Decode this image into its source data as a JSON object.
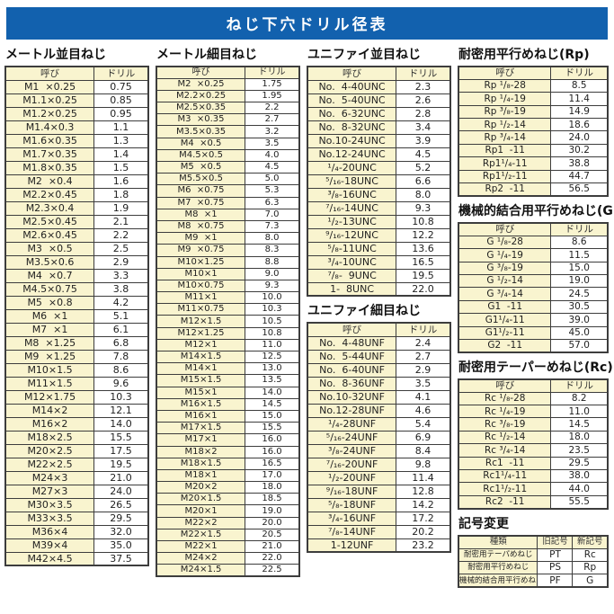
{
  "page_title": "ねじ下穴ドリル径表",
  "table_headers": {
    "name": "呼び",
    "drill": "ドリル"
  },
  "colors": {
    "title_bar_blue": "#1261ae",
    "cell_yellow": "#f9f4cf",
    "cell_white": "#ffffff",
    "border_dark": "#3d3d3d",
    "text": "#1f1f1f"
  },
  "sections": {
    "metric_coarse": {
      "title": "メートル並目ねじ",
      "rows": [
        [
          "M1  ×0.25",
          "0.75"
        ],
        [
          "M1.1×0.25",
          "0.85"
        ],
        [
          "M1.2×0.25",
          "0.95"
        ],
        [
          "M1.4×0.3",
          "1.1"
        ],
        [
          "M1.6×0.35",
          "1.3"
        ],
        [
          "M1.7×0.35",
          "1.4"
        ],
        [
          "M1.8×0.35",
          "1.5"
        ],
        [
          "M2  ×0.4",
          "1.6"
        ],
        [
          "M2.2×0.45",
          "1.8"
        ],
        [
          "M2.3×0.4",
          "1.9"
        ],
        [
          "M2.5×0.45",
          "2.1"
        ],
        [
          "M2.6×0.45",
          "2.2"
        ],
        [
          "M3  ×0.5",
          "2.5"
        ],
        [
          "M3.5×0.6",
          "2.9"
        ],
        [
          "M4  ×0.7",
          "3.3"
        ],
        [
          "M4.5×0.75",
          "3.8"
        ],
        [
          "M5  ×0.8",
          "4.2"
        ],
        [
          "M6  ×1",
          "5.1"
        ],
        [
          "M7  ×1",
          "6.1"
        ],
        [
          "M8  ×1.25",
          "6.8"
        ],
        [
          "M9  ×1.25",
          "7.8"
        ],
        [
          "M10×1.5",
          "8.6"
        ],
        [
          "M11×1.5",
          "9.6"
        ],
        [
          "M12×1.75",
          "10.3"
        ],
        [
          "M14×2",
          "12.1"
        ],
        [
          "M16×2",
          "14.0"
        ],
        [
          "M18×2.5",
          "15.5"
        ],
        [
          "M20×2.5",
          "17.5"
        ],
        [
          "M22×2.5",
          "19.5"
        ],
        [
          "M24×3",
          "21.0"
        ],
        [
          "M27×3",
          "24.0"
        ],
        [
          "M30×3.5",
          "26.5"
        ],
        [
          "M33×3.5",
          "29.5"
        ],
        [
          "M36×4",
          "32.0"
        ],
        [
          "M39×4",
          "35.0"
        ],
        [
          "M42×4.5",
          "37.5"
        ]
      ]
    },
    "metric_fine": {
      "title": "メートル細目ねじ",
      "rows": [
        [
          "M2  ×0.25",
          "1.75"
        ],
        [
          "M2.2×0.25",
          "1.95"
        ],
        [
          "M2.5×0.35",
          "2.2"
        ],
        [
          "M3  ×0.35",
          "2.7"
        ],
        [
          "M3.5×0.35",
          "3.2"
        ],
        [
          "M4  ×0.5",
          "3.5"
        ],
        [
          "M4.5×0.5",
          "4.0"
        ],
        [
          "M5  ×0.5",
          "4.5"
        ],
        [
          "M5.5×0.5",
          "5.0"
        ],
        [
          "M6  ×0.75",
          "5.3"
        ],
        [
          "M7  ×0.75",
          "6.3"
        ],
        [
          "M8  ×1",
          "7.0"
        ],
        [
          "M8  ×0.75",
          "7.3"
        ],
        [
          "M9  ×1",
          "8.0"
        ],
        [
          "M9  ×0.75",
          "8.3"
        ],
        [
          "M10×1.25",
          "8.8"
        ],
        [
          "M10×1",
          "9.0"
        ],
        [
          "M10×0.75",
          "9.3"
        ],
        [
          "M11×1",
          "10.0"
        ],
        [
          "M11×0.75",
          "10.3"
        ],
        [
          "M12×1.5",
          "10.5"
        ],
        [
          "M12×1.25",
          "10.8"
        ],
        [
          "M12×1",
          "11.0"
        ],
        [
          "M14×1.5",
          "12.5"
        ],
        [
          "M14×1",
          "13.0"
        ],
        [
          "M15×1.5",
          "13.5"
        ],
        [
          "M15×1",
          "14.0"
        ],
        [
          "M16×1.5",
          "14.5"
        ],
        [
          "M16×1",
          "15.0"
        ],
        [
          "M17×1.5",
          "15.5"
        ],
        [
          "M17×1",
          "16.0"
        ],
        [
          "M18×2",
          "16.0"
        ],
        [
          "M18×1.5",
          "16.5"
        ],
        [
          "M18×1",
          "17.0"
        ],
        [
          "M20×2",
          "18.0"
        ],
        [
          "M20×1.5",
          "18.5"
        ],
        [
          "M20×1",
          "19.0"
        ],
        [
          "M22×2",
          "20.0"
        ],
        [
          "M22×1.5",
          "20.5"
        ],
        [
          "M22×1",
          "21.0"
        ],
        [
          "M24×2",
          "22.0"
        ],
        [
          "M24×1.5",
          "22.5"
        ]
      ]
    },
    "unified_coarse": {
      "title": "ユニファイ並目ねじ",
      "rows": [
        [
          "No.  4-40UNC",
          "2.3"
        ],
        [
          "No.  5-40UNC",
          "2.6"
        ],
        [
          "No.  6-32UNC",
          "2.8"
        ],
        [
          "No.  8-32UNC",
          "3.4"
        ],
        [
          "No.10-24UNC",
          "3.9"
        ],
        [
          "No.12-24UNC",
          "4.5"
        ],
        [
          "¹/₄-20UNC",
          "5.2"
        ],
        [
          "⁵/₁₆-18UNC",
          "6.6"
        ],
        [
          "³/₈-16UNC",
          "8.0"
        ],
        [
          "⁷/₁₆-14UNC",
          "9.3"
        ],
        [
          "¹/₂-13UNC",
          "10.8"
        ],
        [
          "⁹/₁₆-12UNC",
          "12.2"
        ],
        [
          "⁵/₈-11UNC",
          "13.6"
        ],
        [
          "³/₄-10UNC",
          "16.5"
        ],
        [
          "⁷/₈-  9UNC",
          "19.5"
        ],
        [
          "1-  8UNC",
          "22.0"
        ]
      ]
    },
    "unified_fine": {
      "title": "ユニファイ細目ねじ",
      "rows": [
        [
          "No.  4-48UNF",
          "2.4"
        ],
        [
          "No.  5-44UNF",
          "2.7"
        ],
        [
          "No.  6-40UNF",
          "2.9"
        ],
        [
          "No.  8-36UNF",
          "3.5"
        ],
        [
          "No.10-32UNF",
          "4.1"
        ],
        [
          "No.12-28UNF",
          "4.6"
        ],
        [
          "¹/₄-28UNF",
          "5.4"
        ],
        [
          "⁵/₁₆-24UNF",
          "6.9"
        ],
        [
          "³/₈-24UNF",
          "8.4"
        ],
        [
          "⁷/₁₆-20UNF",
          "9.8"
        ],
        [
          "¹/₂-20UNF",
          "11.4"
        ],
        [
          "⁹/₁₆-18UNF",
          "12.8"
        ],
        [
          "⁵/₈-18UNF",
          "14.2"
        ],
        [
          "³/₄-16UNF",
          "17.2"
        ],
        [
          "⁷/₈-14UNF",
          "20.2"
        ],
        [
          "1-12UNF",
          "23.2"
        ]
      ]
    },
    "rp": {
      "title": "耐密用平行めねじ(Rp)",
      "rows": [
        [
          "Rp ¹/₈-28",
          "8.5"
        ],
        [
          "Rp ¹/₄-19",
          "11.4"
        ],
        [
          "Rp ³/₈-19",
          "14.9"
        ],
        [
          "Rp ¹/₂-14",
          "18.6"
        ],
        [
          "Rp ³/₄-14",
          "24.0"
        ],
        [
          "Rp1  -11",
          "30.2"
        ],
        [
          "Rp1¹/₄-11",
          "38.8"
        ],
        [
          "Rp1¹/₂-11",
          "44.7"
        ],
        [
          "Rp2  -11",
          "56.5"
        ]
      ]
    },
    "g": {
      "title": "機械的結合用平行めねじ(G)",
      "rows": [
        [
          "G ¹/₈-28",
          "8.6"
        ],
        [
          "G ¹/₄-19",
          "11.5"
        ],
        [
          "G ³/₈-19",
          "15.0"
        ],
        [
          "G ¹/₂-14",
          "19.0"
        ],
        [
          "G ³/₄-14",
          "24.5"
        ],
        [
          "G1  -11",
          "30.5"
        ],
        [
          "G1¹/₄-11",
          "39.0"
        ],
        [
          "G1¹/₂-11",
          "45.0"
        ],
        [
          "G2  -11",
          "57.0"
        ]
      ]
    },
    "rc": {
      "title": "耐密用テーパーめねじ(Rc)",
      "rows": [
        [
          "Rc ¹/₈-28",
          "8.2"
        ],
        [
          "Rc ¹/₄-19",
          "11.0"
        ],
        [
          "Rc ³/₈-19",
          "14.5"
        ],
        [
          "Rc ¹/₂-14",
          "18.0"
        ],
        [
          "Rc ³/₄-14",
          "23.5"
        ],
        [
          "Rc1  -11",
          "29.5"
        ],
        [
          "Rc1¹/₄-11",
          "38.0"
        ],
        [
          "Rc1¹/₂-11",
          "44.0"
        ],
        [
          "Rc2  -11",
          "55.5"
        ]
      ]
    }
  },
  "symbol_change": {
    "title": "記号変更",
    "headers": [
      "種類",
      "旧記号",
      "新記号"
    ],
    "rows": [
      [
        "耐密用テーパめねじ",
        "PT",
        "Rc"
      ],
      [
        "耐密用平行めねじ",
        "PS",
        "Rp"
      ],
      [
        "機械的結合用平行めねじ",
        "PF",
        "G"
      ]
    ]
  }
}
